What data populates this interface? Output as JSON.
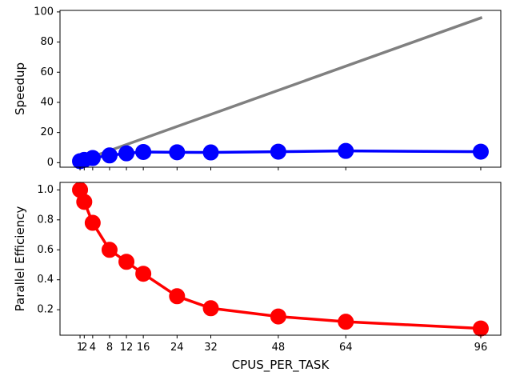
{
  "chart_data": [
    {
      "type": "line",
      "xlabel": "",
      "ylabel": "Speedup",
      "x": [
        1,
        2,
        4,
        8,
        12,
        16,
        24,
        32,
        48,
        64,
        96
      ],
      "ylim": [
        -3,
        101
      ],
      "yticks": [
        0,
        20,
        40,
        60,
        80,
        100
      ],
      "series": [
        {
          "color": "#808080",
          "marker": false,
          "x": [
            1,
            96
          ],
          "values": [
            1,
            96
          ]
        },
        {
          "color": "#0000ff",
          "marker": true,
          "x": [
            1,
            2,
            4,
            8,
            12,
            16,
            24,
            32,
            48,
            64,
            96
          ],
          "values": [
            1,
            1.85,
            3.1,
            4.8,
            6.2,
            7.1,
            6.9,
            6.8,
            7.3,
            7.8,
            7.3
          ]
        }
      ]
    },
    {
      "type": "line",
      "xlabel": "CPUS_PER_TASK",
      "ylabel": "Parallel Efficiency",
      "x": [
        1,
        2,
        4,
        8,
        12,
        16,
        24,
        32,
        48,
        64,
        96
      ],
      "xticks": [
        1,
        2,
        4,
        8,
        12,
        16,
        24,
        32,
        48,
        64,
        96
      ],
      "ylim": [
        0.03,
        1.05
      ],
      "yticks": [
        0.2,
        0.4,
        0.6,
        0.8,
        1.0
      ],
      "ytick_labels": [
        "0.2",
        "0.4",
        "0.6",
        "0.8",
        "1.0"
      ],
      "series": [
        {
          "color": "#ff0000",
          "marker": true,
          "x": [
            1,
            2,
            4,
            8,
            12,
            16,
            24,
            32,
            48,
            64,
            96
          ],
          "values": [
            1.0,
            0.92,
            0.78,
            0.6,
            0.52,
            0.44,
            0.29,
            0.21,
            0.155,
            0.12,
            0.075
          ]
        }
      ]
    }
  ]
}
